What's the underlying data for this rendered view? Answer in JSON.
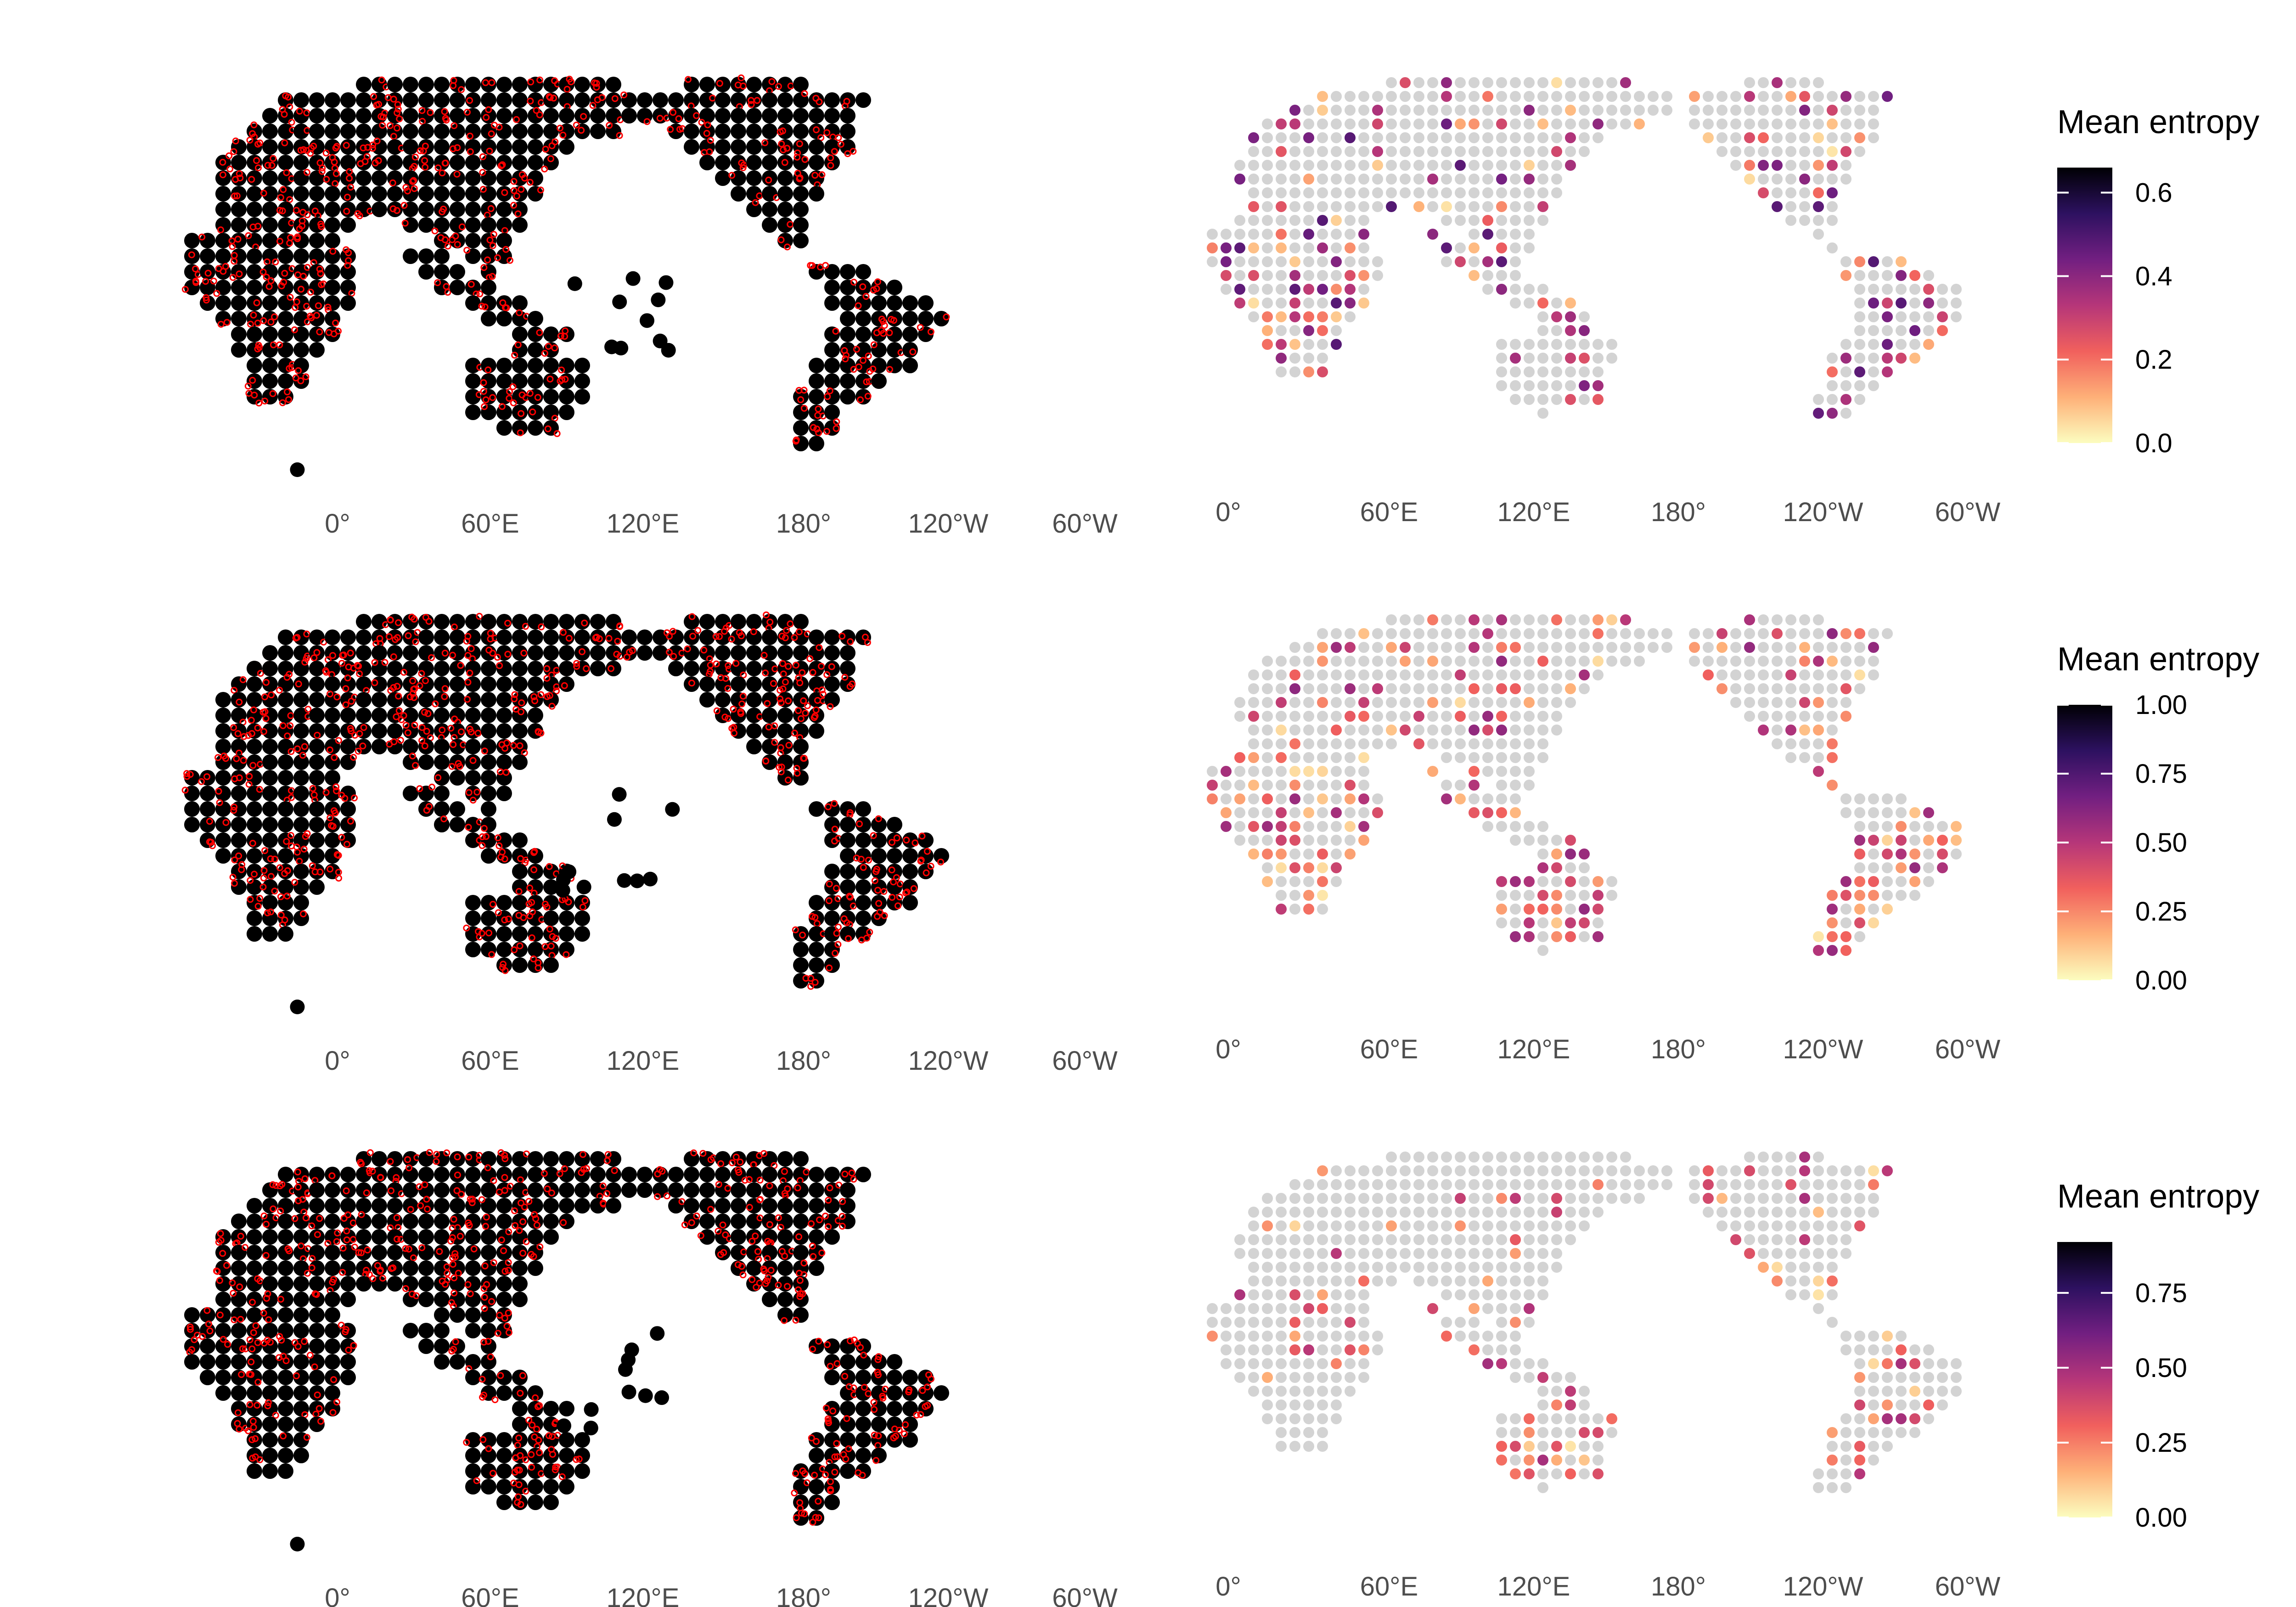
{
  "figure": {
    "layout": "3 rows x 2 columns",
    "left_column": "occurrence maps: black filled grid cells with red open-circle occurrence records",
    "right_column": "grid cells colored by mean entropy, grey cells = low/no value",
    "palette": {
      "grid_cell": "#000000",
      "occurrence": "#ff0000",
      "empty_cell": "#d3d3d3",
      "coastline": "#9e9e9e",
      "colormap": "magma (reversed)",
      "colormap_stops": [
        "#fcfdbf",
        "#feb078",
        "#f1605d",
        "#b63679",
        "#721f81",
        "#2d1160",
        "#000004"
      ]
    }
  },
  "axis_x_ticks": [
    "0°",
    "60°E",
    "120°E",
    "180°",
    "120°W",
    "60°W"
  ],
  "legend_title": "Mean entropy",
  "rows": [
    {
      "legend": {
        "title": "Mean entropy",
        "min": 0.0,
        "max": 0.66,
        "ticks": [
          {
            "v": 0.0,
            "label": "0.0"
          },
          {
            "v": 0.2,
            "label": "0.2"
          },
          {
            "v": 0.4,
            "label": "0.4"
          },
          {
            "v": 0.6,
            "label": "0.6"
          }
        ]
      },
      "entropy_level": 0.5
    },
    {
      "legend": {
        "title": "Mean entropy",
        "min": 0.0,
        "max": 1.0,
        "ticks": [
          {
            "v": 0.0,
            "label": "0.00"
          },
          {
            "v": 0.25,
            "label": "0.25"
          },
          {
            "v": 0.5,
            "label": "0.50"
          },
          {
            "v": 0.75,
            "label": "0.75"
          },
          {
            "v": 1.0,
            "label": "1.00"
          }
        ]
      },
      "entropy_level": 0.35
    },
    {
      "legend": {
        "title": "Mean entropy",
        "min": 0.0,
        "max": 0.92,
        "ticks": [
          {
            "v": 0.0,
            "label": "0.00"
          },
          {
            "v": 0.25,
            "label": "0.25"
          },
          {
            "v": 0.5,
            "label": "0.50"
          },
          {
            "v": 0.75,
            "label": "0.75"
          }
        ]
      },
      "entropy_level": 0.3
    }
  ]
}
